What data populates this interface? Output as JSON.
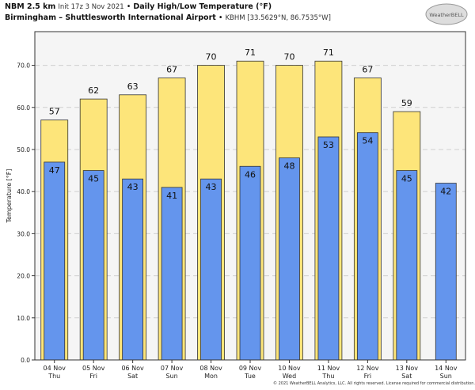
{
  "header": {
    "model": "NBM 2.5 km",
    "init": "Init 17z 3 Nov 2021",
    "sep": "•",
    "title": "Daily High/Low Temperature (°F)",
    "station_name": "Birmingham – Shuttlesworth International Airport",
    "station_info": "KBHM [33.5629°N, 86.7535°W]"
  },
  "logo": {
    "text": "WeatherBELL"
  },
  "footer": "© 2021 WeatherBELL Analytics, LLC. All rights reserved. License required for commercial distribution.",
  "colors": {
    "high": "#fde57a",
    "low": "#6495ed",
    "plot_bg": "#f5f5f5",
    "grid": "#d0d0d0"
  },
  "chart_data": {
    "type": "bar",
    "ylabel": "Temperature [°F]",
    "ylim": [
      0,
      78
    ],
    "yticks": [
      "0.0",
      "10.0",
      "20.0",
      "30.0",
      "40.0",
      "50.0",
      "60.0",
      "70.0"
    ],
    "grid": true,
    "categories": [
      {
        "date": "04 Nov",
        "day": "Thu"
      },
      {
        "date": "05 Nov",
        "day": "Fri"
      },
      {
        "date": "06 Nov",
        "day": "Sat"
      },
      {
        "date": "07 Nov",
        "day": "Sun"
      },
      {
        "date": "08 Nov",
        "day": "Mon"
      },
      {
        "date": "09 Nov",
        "day": "Tue"
      },
      {
        "date": "10 Nov",
        "day": "Wed"
      },
      {
        "date": "11 Nov",
        "day": "Thu"
      },
      {
        "date": "12 Nov",
        "day": "Fri"
      },
      {
        "date": "13 Nov",
        "day": "Sat"
      },
      {
        "date": "14 Nov",
        "day": "Sun"
      }
    ],
    "series": [
      {
        "key": "high",
        "values": [
          57,
          62,
          63,
          67,
          70,
          71,
          70,
          71,
          67,
          59,
          null
        ]
      },
      {
        "key": "low",
        "values": [
          47,
          45,
          43,
          41,
          43,
          46,
          48,
          53,
          54,
          45,
          42
        ]
      }
    ]
  }
}
